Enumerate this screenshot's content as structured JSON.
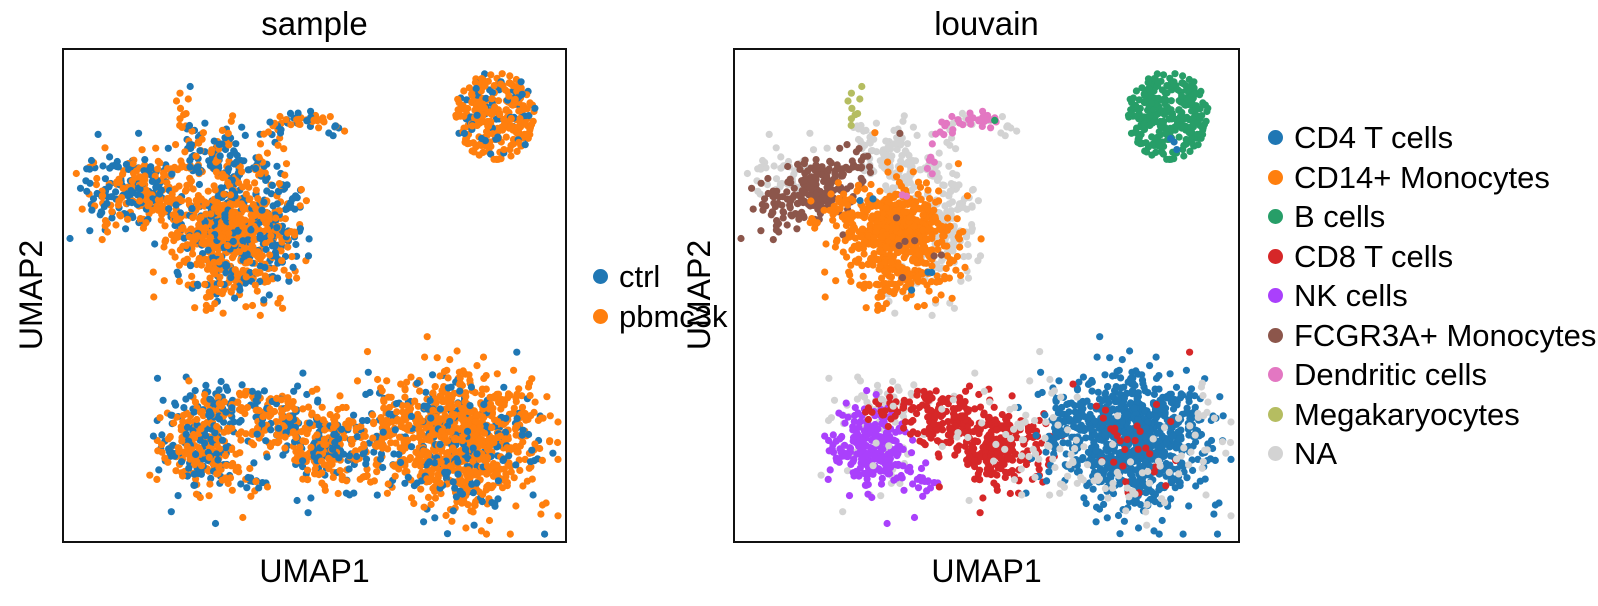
{
  "figure": {
    "background": "#ffffff",
    "frame_color": "#111111",
    "point_radius": 3.6,
    "seed": 42
  },
  "chart_data": {
    "type": "scatter",
    "embedding": "UMAP",
    "grid": false,
    "axis_ticks": "none",
    "panels": [
      {
        "title": "sample",
        "color_by": "sample",
        "xlabel": "UMAP1",
        "ylabel": "UMAP2",
        "legend_position": "right of axes, vertically centered",
        "legend": [
          {
            "label": "ctrl",
            "color": "#1f77b4"
          },
          {
            "label": "pbmc3k",
            "color": "#ff7f0e"
          }
        ]
      },
      {
        "title": "louvain",
        "color_by": "louvain",
        "xlabel": "UMAP1",
        "ylabel": "UMAP2",
        "legend_position": "right of axes, vertically centered",
        "legend": [
          {
            "label": "CD4 T cells",
            "color": "#1f77b4"
          },
          {
            "label": "CD14+ Monocytes",
            "color": "#ff7f0e"
          },
          {
            "label": "B cells",
            "color": "#279e68"
          },
          {
            "label": "CD8 T cells",
            "color": "#d62728"
          },
          {
            "label": "NK cells",
            "color": "#aa40fc"
          },
          {
            "label": "FCGR3A+ Monocytes",
            "color": "#8c564b"
          },
          {
            "label": "Dendritic cells",
            "color": "#e377c2"
          },
          {
            "label": "Megakaryocytes",
            "color": "#b5bd61"
          },
          {
            "label": "NA",
            "color": "#d3d3d3"
          }
        ]
      }
    ],
    "palette": {
      "sample": {
        "ctrl": "#1f77b4",
        "pbmc3k": "#ff7f0e"
      },
      "louvain": {
        "CD4 T cells": "#1f77b4",
        "CD14+ Monocytes": "#ff7f0e",
        "B cells": "#279e68",
        "CD8 T cells": "#d62728",
        "NK cells": "#aa40fc",
        "FCGR3A+ Monocytes": "#8c564b",
        "Dendritic cells": "#e377c2",
        "Megakaryocytes": "#b5bd61",
        "NA": "#d3d3d3"
      }
    },
    "representation": "generative-cluster-summary: both panels share one UMAP embedding; clusters give normalized centers/spreads, point counts, louvain identity and ctrl fraction (sample panel)",
    "clusters": [
      {
        "louvain": "NA",
        "type": "gauss",
        "cx": 0.1,
        "cy": 0.25,
        "sx": 0.04,
        "sy": 0.035,
        "theta": 0,
        "n": 45,
        "ctrl_frac": 0.6
      },
      {
        "louvain": "NA",
        "type": "poly",
        "pts": [
          [
            0.243,
            0.16
          ],
          [
            0.3,
            0.225
          ],
          [
            0.348,
            0.285
          ]
        ],
        "jitter": 0.012,
        "n": 55,
        "ctrl_frac": 0.62
      },
      {
        "louvain": "NA",
        "type": "gauss",
        "cx": 0.33,
        "cy": 0.225,
        "sx": 0.022,
        "sy": 0.042,
        "theta": 0,
        "n": 60,
        "ctrl_frac": 0.62
      },
      {
        "louvain": "NA",
        "type": "gauss",
        "cx": 0.425,
        "cy": 0.32,
        "sx": 0.03,
        "sy": 0.05,
        "theta": 0,
        "n": 110,
        "ctrl_frac": 0.62
      },
      {
        "louvain": "NA",
        "type": "gauss",
        "cx": 0.385,
        "cy": 0.445,
        "sx": 0.05,
        "sy": 0.045,
        "theta": 0,
        "n": 45,
        "ctrl_frac": 0.55
      },
      {
        "louvain": "NA",
        "type": "poly",
        "pts": [
          [
            0.247,
            0.17
          ],
          [
            0.262,
            0.225
          ],
          [
            0.268,
            0.252
          ]
        ],
        "jitter": 0.008,
        "n": 12,
        "ctrl_frac": 0.6
      },
      {
        "louvain": "NA",
        "type": "poly",
        "pts": [
          [
            0.38,
            0.25
          ],
          [
            0.4,
            0.195
          ],
          [
            0.425,
            0.158
          ],
          [
            0.462,
            0.14
          ],
          [
            0.5,
            0.142
          ],
          [
            0.535,
            0.158
          ],
          [
            0.56,
            0.165
          ]
        ],
        "jitter": 0.01,
        "n": 28,
        "ctrl_frac": 0.5
      },
      {
        "louvain": "Megakaryocytes",
        "type": "gauss",
        "cx": 0.24,
        "cy": 0.115,
        "sx": 0.009,
        "sy": 0.032,
        "theta": 0,
        "n": 9,
        "ctrl_frac": 0.25
      },
      {
        "louvain": "Dendritic cells",
        "type": "poly",
        "pts": [
          [
            0.374,
            0.252
          ],
          [
            0.392,
            0.205
          ],
          [
            0.413,
            0.168
          ],
          [
            0.44,
            0.147
          ],
          [
            0.472,
            0.135
          ],
          [
            0.505,
            0.138
          ],
          [
            0.53,
            0.152
          ]
        ],
        "jitter": 0.008,
        "n": 40,
        "ctrl_frac": 0.35
      },
      {
        "louvain": "FCGR3A+ Monocytes",
        "type": "gauss",
        "cx": 0.155,
        "cy": 0.292,
        "sx": 0.062,
        "sy": 0.03,
        "theta": -28,
        "n": 210,
        "ctrl_frac": 0.45
      },
      {
        "louvain": "CD14+ Monocytes",
        "type": "gauss",
        "cx": 0.21,
        "cy": 0.33,
        "sx": 0.03,
        "sy": 0.03,
        "theta": 0,
        "n": 40,
        "ctrl_frac": 0.3
      },
      {
        "louvain": "CD14+ Monocytes",
        "type": "gauss",
        "cx": 0.325,
        "cy": 0.378,
        "sx": 0.056,
        "sy": 0.052,
        "theta": 0,
        "n": 560,
        "ctrl_frac": 0.28
      },
      {
        "louvain": "CD14+ Monocytes",
        "type": "gauss",
        "cx": 0.33,
        "cy": 0.47,
        "sx": 0.035,
        "sy": 0.035,
        "theta": 0,
        "n": 40,
        "ctrl_frac": 0.3
      },
      {
        "louvain": "FCGR3A+ Monocytes",
        "type": "gauss",
        "cx": 0.33,
        "cy": 0.385,
        "sx": 0.035,
        "sy": 0.035,
        "theta": 0,
        "n": 7,
        "ctrl_frac": 0.4
      },
      {
        "louvain": "Dendritic cells",
        "type": "gauss",
        "cx": 0.335,
        "cy": 0.3,
        "sx": 0.006,
        "sy": 0.006,
        "theta": 0,
        "n": 2,
        "ctrl_frac": 0.5
      },
      {
        "louvain": "CD14+ Monocytes",
        "type": "gauss",
        "cx": 0.275,
        "cy": 0.172,
        "sx": 0.004,
        "sy": 0.004,
        "theta": 0,
        "n": 1,
        "ctrl_frac": 0.0
      },
      {
        "louvain": "B cells",
        "type": "disc",
        "cx": 0.862,
        "cy": 0.134,
        "rx": 0.082,
        "ry": 0.09,
        "n": 280,
        "ctrl_frac": 0.2
      },
      {
        "louvain": "NA",
        "type": "gauss",
        "cx": 0.3,
        "cy": 0.715,
        "sx": 0.048,
        "sy": 0.018,
        "theta": 0,
        "n": 40,
        "ctrl_frac": 0.5
      },
      {
        "louvain": "NA",
        "type": "gauss",
        "cx": 0.27,
        "cy": 0.8,
        "sx": 0.05,
        "sy": 0.05,
        "theta": 0,
        "n": 45,
        "ctrl_frac": 0.5
      },
      {
        "louvain": "NK cells",
        "type": "gauss",
        "cx": 0.272,
        "cy": 0.805,
        "sx": 0.04,
        "sy": 0.042,
        "theta": 0,
        "n": 225,
        "ctrl_frac": 0.45
      },
      {
        "louvain": "NK cells",
        "type": "poly",
        "pts": [
          [
            0.315,
            0.855
          ],
          [
            0.36,
            0.875
          ],
          [
            0.405,
            0.89
          ]
        ],
        "jitter": 0.013,
        "n": 22,
        "ctrl_frac": 0.45
      },
      {
        "louvain": "CD8 T cells",
        "type": "gauss",
        "cx": 0.3,
        "cy": 0.735,
        "sx": 0.03,
        "sy": 0.018,
        "theta": 0,
        "n": 25,
        "ctrl_frac": 0.45
      },
      {
        "louvain": "CD8 T cells",
        "type": "gauss",
        "cx": 0.425,
        "cy": 0.755,
        "sx": 0.048,
        "sy": 0.03,
        "theta": 0,
        "n": 150,
        "ctrl_frac": 0.35
      },
      {
        "louvain": "CD8 T cells",
        "type": "gauss",
        "cx": 0.53,
        "cy": 0.815,
        "sx": 0.05,
        "sy": 0.042,
        "theta": 0,
        "n": 210,
        "ctrl_frac": 0.3
      },
      {
        "louvain": "CD4 T cells",
        "type": "gauss",
        "cx": 0.665,
        "cy": 0.765,
        "sx": 0.03,
        "sy": 0.04,
        "theta": 0,
        "n": 75,
        "ctrl_frac": 0.3
      },
      {
        "louvain": "CD4 T cells",
        "type": "gauss",
        "cx": 0.798,
        "cy": 0.795,
        "sx": 0.066,
        "sy": 0.07,
        "theta": 0,
        "n": 820,
        "ctrl_frac": 0.18
      },
      {
        "louvain": "CD8 T cells",
        "type": "gauss",
        "cx": 0.8,
        "cy": 0.795,
        "sx": 0.055,
        "sy": 0.06,
        "theta": 0,
        "n": 30,
        "ctrl_frac": 0.3
      },
      {
        "louvain": "NA",
        "type": "gauss",
        "cx": 0.8,
        "cy": 0.875,
        "sx": 0.08,
        "sy": 0.04,
        "theta": 0,
        "n": 45,
        "ctrl_frac": 0.45
      },
      {
        "louvain": "NA",
        "type": "gauss",
        "cx": 0.6,
        "cy": 0.8,
        "sx": 0.06,
        "sy": 0.05,
        "theta": 0,
        "n": 35,
        "ctrl_frac": 0.45
      },
      {
        "louvain": "NA",
        "type": "gauss",
        "cx": 0.55,
        "cy": 0.79,
        "sx": 0.15,
        "sy": 0.07,
        "theta": 0,
        "n": 35,
        "ctrl_frac": 0.45
      },
      {
        "louvain": "NA",
        "type": "gauss",
        "cx": 0.93,
        "cy": 0.78,
        "sx": 0.03,
        "sy": 0.05,
        "theta": 0,
        "n": 20,
        "ctrl_frac": 0.4
      },
      {
        "louvain": "CD4 T cells",
        "type": "gauss",
        "cx": 0.37,
        "cy": 0.46,
        "sx": 0.015,
        "sy": 0.02,
        "theta": 0,
        "n": 3,
        "ctrl_frac": 0.4
      },
      {
        "louvain": "CD4 T cells",
        "type": "gauss",
        "cx": 0.87,
        "cy": 0.19,
        "sx": 0.012,
        "sy": 0.012,
        "theta": 0,
        "n": 3,
        "ctrl_frac": 0.3
      },
      {
        "louvain": "CD4 T cells",
        "type": "gauss",
        "cx": 0.26,
        "cy": 0.3,
        "sx": 0.01,
        "sy": 0.01,
        "theta": 0,
        "n": 2,
        "ctrl_frac": 0.5
      },
      {
        "louvain": "B cells",
        "type": "gauss",
        "cx": 0.522,
        "cy": 0.143,
        "sx": 0.004,
        "sy": 0.004,
        "theta": 0,
        "n": 1,
        "ctrl_frac": 0.0
      }
    ]
  }
}
